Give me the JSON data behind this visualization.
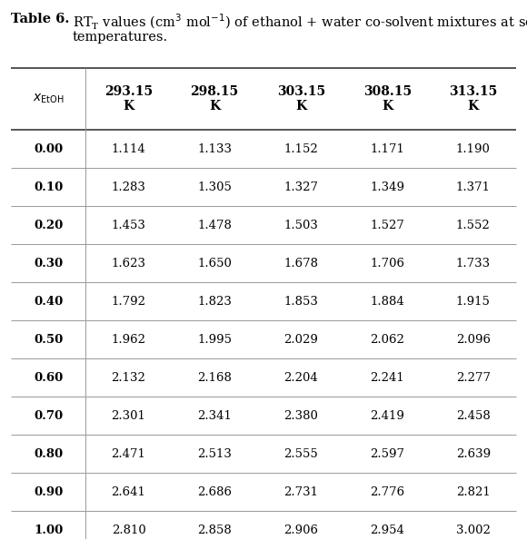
{
  "title_bold": "Table 6.",
  "col_headers": [
    "293.15\nK",
    "298.15\nK",
    "303.15\nK",
    "308.15\nK",
    "313.15\nK"
  ],
  "row_headers": [
    "0.00",
    "0.10",
    "0.20",
    "0.30",
    "0.40",
    "0.50",
    "0.60",
    "0.70",
    "0.80",
    "0.90",
    "1.00"
  ],
  "data": [
    [
      1.114,
      1.133,
      1.152,
      1.171,
      1.19
    ],
    [
      1.283,
      1.305,
      1.327,
      1.349,
      1.371
    ],
    [
      1.453,
      1.478,
      1.503,
      1.527,
      1.552
    ],
    [
      1.623,
      1.65,
      1.678,
      1.706,
      1.733
    ],
    [
      1.792,
      1.823,
      1.853,
      1.884,
      1.915
    ],
    [
      1.962,
      1.995,
      2.029,
      2.062,
      2.096
    ],
    [
      2.132,
      2.168,
      2.204,
      2.241,
      2.277
    ],
    [
      2.301,
      2.341,
      2.38,
      2.419,
      2.458
    ],
    [
      2.471,
      2.513,
      2.555,
      2.597,
      2.639
    ],
    [
      2.641,
      2.686,
      2.731,
      2.776,
      2.821
    ],
    [
      2.81,
      2.858,
      2.906,
      2.954,
      3.002
    ]
  ],
  "background_color": "#ffffff",
  "text_color": "#000000",
  "figsize": [
    5.8,
    5.94
  ],
  "dpi": 100,
  "font_size": 9.5,
  "title_font_size": 10.5
}
